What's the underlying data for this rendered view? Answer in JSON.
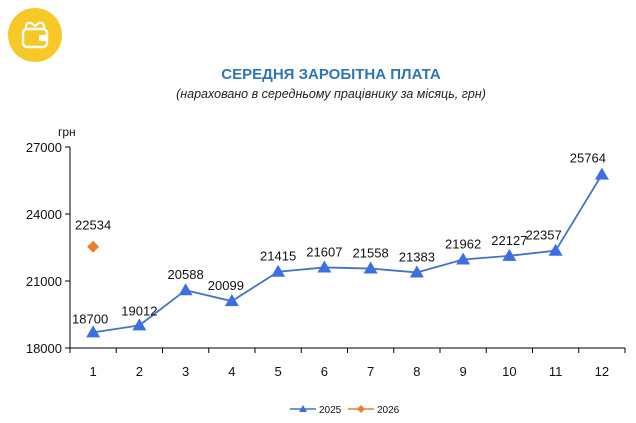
{
  "colors": {
    "series_2025": "#4472c4",
    "marker_2025": "#3d6fe0",
    "series_2026": "#ed7d31",
    "title": "#2e75b6",
    "axis": "#000000",
    "badge_bg": "#f7c928",
    "badge_icon": "#ffffff"
  },
  "badge": {
    "icon": "wallet-icon"
  },
  "chart_data": {
    "type": "line",
    "title": "СЕРЕДНЯ ЗАРОБІТНА ПЛАТА",
    "subtitle": "(нараховано в середньому працівнику за місяць, грн)",
    "ylabel": "грн",
    "xlabel": "",
    "categories": [
      "1",
      "2",
      "3",
      "4",
      "5",
      "6",
      "7",
      "8",
      "9",
      "10",
      "11",
      "12"
    ],
    "ylim": [
      18000,
      27000
    ],
    "yticks": [
      18000,
      21000,
      24000,
      27000
    ],
    "grid": false,
    "legend_position": "bottom",
    "series": [
      {
        "name": "2025",
        "marker": "triangle",
        "values": [
          18700,
          19012,
          20588,
          20099,
          21415,
          21607,
          21558,
          21383,
          21962,
          22127,
          22357,
          25764
        ],
        "labels": [
          "18700",
          "19012",
          "20588",
          "20099",
          "21415",
          "21607",
          "21558",
          "21383",
          "21962",
          "22127",
          "22357",
          "25764"
        ]
      },
      {
        "name": "2026",
        "marker": "diamond",
        "values": [
          22534,
          null,
          null,
          null,
          null,
          null,
          null,
          null,
          null,
          null,
          null,
          null
        ],
        "labels": [
          "22534",
          "",
          "",
          "",
          "",
          "",
          "",
          "",
          "",
          "",
          "",
          ""
        ]
      }
    ]
  }
}
